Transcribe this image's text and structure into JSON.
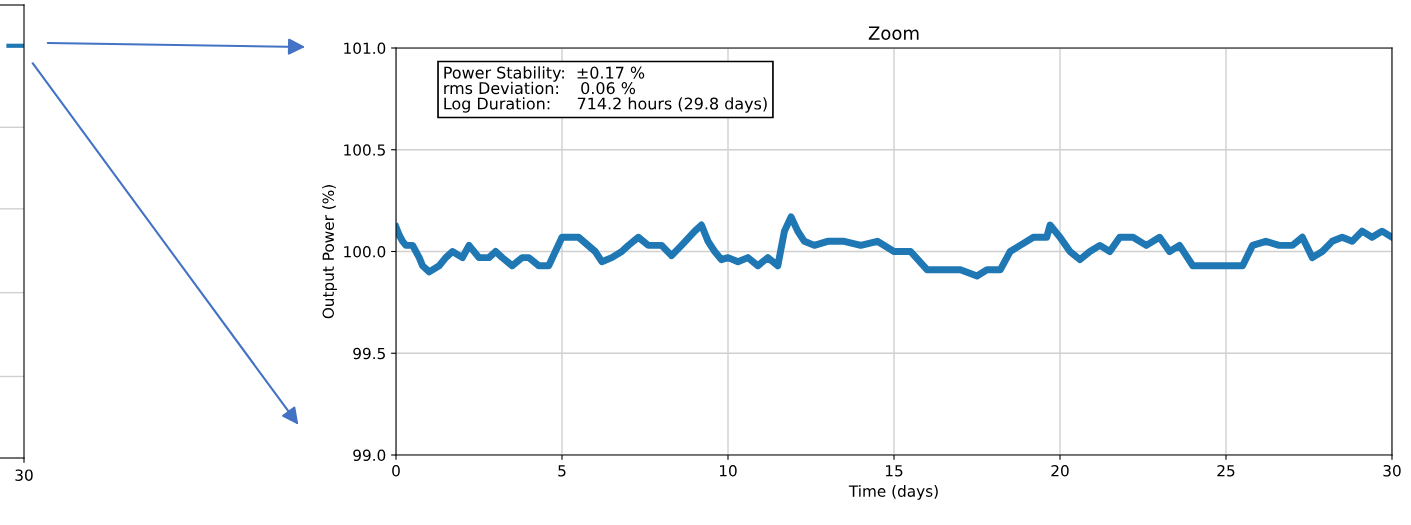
{
  "chart_data": [
    {
      "type": "other",
      "annotations": [
        "30"
      ]
    },
    {
      "type": "line",
      "title": "Zoom",
      "xlabel": "Time (days)",
      "ylabel": "Output Power (%)",
      "xlim": [
        0,
        30
      ],
      "ylim": [
        99.0,
        101.0
      ],
      "xticks": [
        0,
        5,
        10,
        15,
        20,
        25,
        30
      ],
      "yticks": [
        {
          "value": 99.0,
          "label": "99.0"
        },
        99.5,
        {
          "value": 100.0,
          "label": "100.0"
        },
        100.5,
        {
          "value": 101.0,
          "label": "101.0"
        }
      ],
      "grid": true,
      "annotations": [
        "Power Stability:  ±0.17 %\nrms Deviation:    0.06 %\nLog Duration:     714.2 hours (29.8 days)"
      ],
      "series": [
        {
          "color": "#1f77b4",
          "x": [
            0,
            0.1,
            0.2,
            0.3,
            0.5,
            0.7,
            0.8,
            1.0,
            1.3,
            1.5,
            1.7,
            2.0,
            2.2,
            2.5,
            2.8,
            3.0,
            3.2,
            3.5,
            3.8,
            4.0,
            4.3,
            4.6,
            4.8,
            5.0,
            5.5,
            6.0,
            6.2,
            6.5,
            6.8,
            7.0,
            7.3,
            7.6,
            8.0,
            8.3,
            8.6,
            9.0,
            9.2,
            9.4,
            9.6,
            9.8,
            10.0,
            10.3,
            10.6,
            10.9,
            11.2,
            11.5,
            11.7,
            11.9,
            12.1,
            12.3,
            12.6,
            13.0,
            13.5,
            14.0,
            14.5,
            15.0,
            15.5,
            16.0,
            16.3,
            16.7,
            17.0,
            17.5,
            17.8,
            18.2,
            18.5,
            18.8,
            19.2,
            19.6,
            19.7,
            20.0,
            20.3,
            20.6,
            20.9,
            21.2,
            21.5,
            21.8,
            22.2,
            22.6,
            23.0,
            23.3,
            23.6,
            24.0,
            24.5,
            25.0,
            25.5,
            25.8,
            26.2,
            26.6,
            27.0,
            27.3,
            27.6,
            27.9,
            28.2,
            28.5,
            28.8,
            29.1,
            29.4,
            29.7,
            30.0
          ],
          "values": [
            100.12,
            100.08,
            100.05,
            100.03,
            100.03,
            99.97,
            99.93,
            99.9,
            99.93,
            99.97,
            100.0,
            99.97,
            100.03,
            99.97,
            99.97,
            100.0,
            99.97,
            99.93,
            99.97,
            99.97,
            99.93,
            99.93,
            100.0,
            100.07,
            100.07,
            100.0,
            99.95,
            99.97,
            100.0,
            100.03,
            100.07,
            100.03,
            100.03,
            99.98,
            100.03,
            100.1,
            100.13,
            100.05,
            100.0,
            99.96,
            99.97,
            99.95,
            99.97,
            99.93,
            99.97,
            99.93,
            100.1,
            100.17,
            100.1,
            100.05,
            100.03,
            100.05,
            100.05,
            100.03,
            100.05,
            100.0,
            100.0,
            99.91,
            99.91,
            99.91,
            99.91,
            99.88,
            99.91,
            99.91,
            100.0,
            100.03,
            100.07,
            100.07,
            100.13,
            100.07,
            100.0,
            99.96,
            100.0,
            100.03,
            100.0,
            100.07,
            100.07,
            100.03,
            100.07,
            100.0,
            100.03,
            99.93,
            99.93,
            99.93,
            99.93,
            100.03,
            100.05,
            100.03,
            100.03,
            100.07,
            99.97,
            100.0,
            100.05,
            100.07,
            100.05,
            100.1,
            100.07,
            100.1,
            100.07
          ]
        }
      ]
    }
  ]
}
